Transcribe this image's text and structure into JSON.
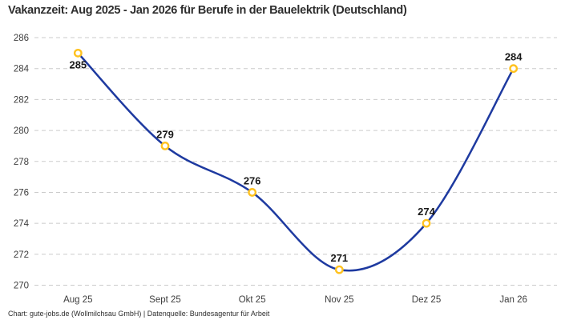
{
  "title": "Vakanzzeit: Aug 2025 - Jan 2026 für Berufe in der Bauelektrik (Deutschland)",
  "footer": "Chart: gute-jobs.de (Wollmilchsau GmbH) | Datenquelle: Bundesagentur für Arbeit",
  "colors": {
    "line": "#1e3aa0",
    "marker_ring": "#ffc220",
    "marker_fill": "#ffffff",
    "grid": "#cbcbcb",
    "title_text": "#2e2e2e",
    "axis_text": "#3d3d3d",
    "point_label_text": "#1a1a1a"
  },
  "chart_data": {
    "type": "line",
    "categories": [
      "Aug 25",
      "Sept 25",
      "Okt 25",
      "Nov 25",
      "Dez 25",
      "Jan 26"
    ],
    "values": [
      285,
      279,
      276,
      271,
      274,
      284
    ],
    "point_labels": [
      "285",
      "279",
      "276",
      "271",
      "274",
      "284"
    ],
    "label_positions": [
      "below",
      "above",
      "above",
      "above",
      "above",
      "above"
    ],
    "title": "Vakanzzeit: Aug 2025 - Jan 2026 für Berufe in der Bauelektrik (Deutschland)",
    "xlabel": "",
    "ylabel": "",
    "ylim": [
      270,
      286
    ],
    "yticks": [
      270,
      272,
      274,
      276,
      278,
      280,
      282,
      284,
      286
    ],
    "grid": "dashed-horizontal",
    "legend": "none",
    "line_smooth": true
  }
}
